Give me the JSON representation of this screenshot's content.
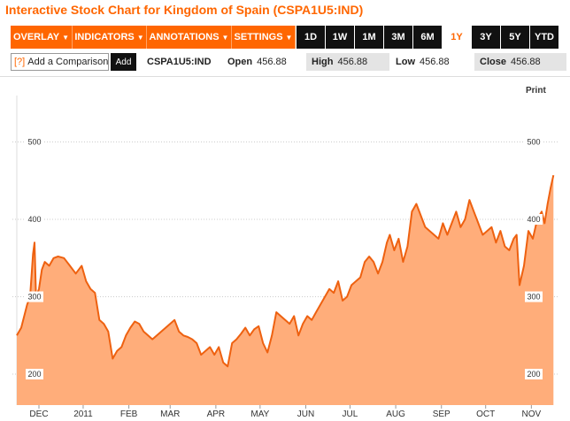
{
  "title": "Interactive Stock Chart for Kingdom of Spain (CSPA1U5:IND)",
  "menus": [
    {
      "label": "OVERLAY",
      "name": "overlay-menu"
    },
    {
      "label": "INDICATORS",
      "name": "indicators-menu"
    },
    {
      "label": "ANNOTATIONS",
      "name": "annotations-menu"
    },
    {
      "label": "SETTINGS",
      "name": "settings-menu"
    }
  ],
  "ranges": [
    "1D",
    "1W",
    "1M",
    "3M",
    "6M",
    "1Y",
    "3Y",
    "5Y",
    "YTD"
  ],
  "active_range": "1Y",
  "compare": {
    "help": "[?]",
    "label": "Add a Comparison",
    "add": "Add"
  },
  "quote": {
    "ticker": "CSPA1U5:IND",
    "open_label": "Open",
    "open": "456.88",
    "high_label": "High",
    "high": "456.88",
    "low_label": "Low",
    "low": "456.88",
    "close_label": "Close",
    "close": "456.88"
  },
  "print_label": "Print",
  "colors": {
    "accent": "#ff6600",
    "fill": "#ffad7a",
    "line": "#ee6110",
    "grid": "#cccccc"
  },
  "chart_data": {
    "type": "area",
    "ylim": [
      160,
      560
    ],
    "yticks": [
      200,
      300,
      400,
      500
    ],
    "ytick_labels": [
      "200",
      "300",
      "400",
      "500"
    ],
    "xlim": [
      0,
      365
    ],
    "xtick_labels": [
      {
        "label": "DEC",
        "x": 15
      },
      {
        "label": "2011",
        "x": 45
      },
      {
        "label": "FEB",
        "x": 76
      },
      {
        "label": "MAR",
        "x": 104
      },
      {
        "label": "APR",
        "x": 135
      },
      {
        "label": "MAY",
        "x": 165
      },
      {
        "label": "JUN",
        "x": 196
      },
      {
        "label": "JUL",
        "x": 226
      },
      {
        "label": "AUG",
        "x": 257
      },
      {
        "label": "SEP",
        "x": 288
      },
      {
        "label": "OCT",
        "x": 318
      },
      {
        "label": "NOV",
        "x": 349
      }
    ],
    "series": [
      {
        "x": [
          0,
          3,
          7,
          9,
          11,
          12,
          13,
          15,
          17,
          19,
          22,
          25,
          28,
          32,
          36,
          40,
          44,
          47,
          50,
          53,
          56,
          59,
          62,
          65,
          68,
          71,
          74,
          77,
          80,
          83,
          86,
          89,
          92,
          95,
          98,
          101,
          104,
          107,
          110,
          113,
          116,
          119,
          122,
          125,
          128,
          131,
          134,
          137,
          140,
          143,
          146,
          149,
          152,
          155,
          158,
          161,
          164,
          167,
          170,
          173,
          176,
          179,
          182,
          185,
          188,
          191,
          194,
          197,
          200,
          203,
          206,
          209,
          212,
          215,
          218,
          221,
          224,
          227,
          230,
          233,
          236,
          239,
          242,
          245,
          248,
          251,
          253,
          256,
          259,
          262,
          265,
          268,
          271,
          274,
          277,
          280,
          283,
          286,
          289,
          292,
          295,
          298,
          301,
          304,
          307,
          310,
          313,
          316,
          319,
          322,
          325,
          328,
          331,
          334,
          337,
          339,
          341,
          344,
          347,
          350,
          353,
          356,
          358,
          360,
          362,
          364
        ],
        "y": [
          250,
          260,
          290,
          300,
          355,
          370,
          300,
          310,
          335,
          345,
          340,
          350,
          352,
          350,
          340,
          330,
          340,
          320,
          310,
          305,
          270,
          265,
          255,
          220,
          230,
          235,
          250,
          260,
          268,
          265,
          255,
          250,
          245,
          250,
          255,
          260,
          265,
          270,
          255,
          250,
          248,
          245,
          240,
          225,
          230,
          235,
          225,
          235,
          215,
          210,
          240,
          245,
          252,
          260,
          250,
          258,
          262,
          240,
          228,
          250,
          280,
          275,
          270,
          265,
          275,
          250,
          265,
          275,
          270,
          280,
          290,
          300,
          310,
          305,
          320,
          295,
          300,
          315,
          320,
          325,
          345,
          352,
          345,
          330,
          345,
          370,
          380,
          360,
          375,
          345,
          365,
          410,
          420,
          405,
          390,
          385,
          380,
          375,
          395,
          380,
          395,
          410,
          390,
          400,
          425,
          410,
          395,
          380,
          385,
          390,
          370,
          385,
          365,
          360,
          375,
          380,
          315,
          340,
          385,
          375,
          400,
          410,
          395,
          420,
          440,
          457
        ]
      }
    ]
  }
}
